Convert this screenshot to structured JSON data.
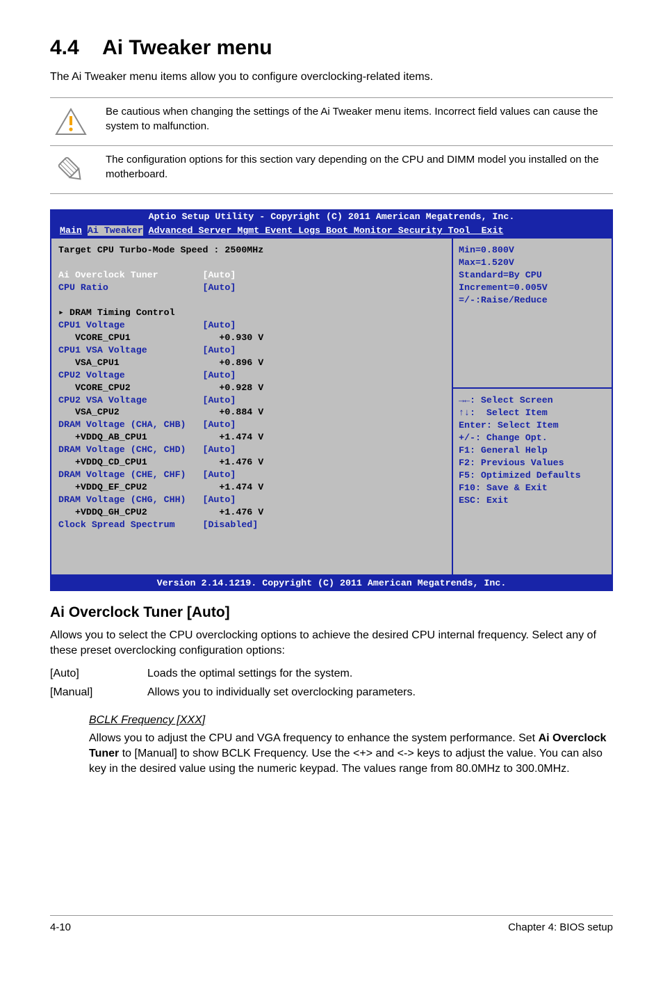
{
  "heading": {
    "number": "4.4",
    "title": "Ai Tweaker menu"
  },
  "intro": "The Ai Tweaker menu items allow you to configure overclocking-related items.",
  "notes": [
    "Be cautious when changing the settings of the Ai Tweaker menu items. Incorrect field values can cause the system to malfunction.",
    "The configuration options for this section vary depending on the CPU and DIMM model you installed on the motherboard."
  ],
  "bios": {
    "header": "Aptio Setup Utility - Copyright (C) 2011 American Megatrends, Inc.",
    "menu_left": "Main",
    "menu_active": "Ai Tweaker",
    "menu_rest": "Advanced Server Mgmt Event Logs Boot Monitor Security Tool  Exit",
    "left_lines": [
      {
        "text": "Target CPU Turbo-Mode Speed : 2500MHz",
        "cls": "black"
      },
      {
        "text": "",
        "cls": ""
      },
      {
        "text": "Ai Overclock Tuner        [Auto]",
        "cls": "white"
      },
      {
        "text": "CPU Ratio                 [Auto]",
        "cls": ""
      },
      {
        "text": "",
        "cls": ""
      },
      {
        "text": "▸ DRAM Timing Control",
        "cls": "black"
      },
      {
        "text": "CPU1 Voltage              [Auto]",
        "cls": ""
      },
      {
        "text": "   VCORE_CPU1                +0.930 V",
        "cls": "black"
      },
      {
        "text": "CPU1 VSA Voltage          [Auto]",
        "cls": ""
      },
      {
        "text": "   VSA_CPU1                  +0.896 V",
        "cls": "black"
      },
      {
        "text": "CPU2 Voltage              [Auto]",
        "cls": ""
      },
      {
        "text": "   VCORE_CPU2                +0.928 V",
        "cls": "black"
      },
      {
        "text": "CPU2 VSA Voltage          [Auto]",
        "cls": ""
      },
      {
        "text": "   VSA_CPU2                  +0.884 V",
        "cls": "black"
      },
      {
        "text": "DRAM Voltage (CHA, CHB)   [Auto]",
        "cls": ""
      },
      {
        "text": "   +VDDQ_AB_CPU1             +1.474 V",
        "cls": "black"
      },
      {
        "text": "DRAM Voltage (CHC, CHD)   [Auto]",
        "cls": ""
      },
      {
        "text": "   +VDDQ_CD_CPU1             +1.476 V",
        "cls": "black"
      },
      {
        "text": "DRAM Voltage (CHE, CHF)   [Auto]",
        "cls": ""
      },
      {
        "text": "   +VDDQ_EF_CPU2             +1.474 V",
        "cls": "black"
      },
      {
        "text": "DRAM Voltage (CHG, CHH)   [Auto]",
        "cls": ""
      },
      {
        "text": "   +VDDQ_GH_CPU2             +1.476 V",
        "cls": "black"
      },
      {
        "text": "Clock Spread Spectrum     [Disabled]",
        "cls": ""
      },
      {
        "text": "",
        "cls": ""
      },
      {
        "text": "",
        "cls": ""
      },
      {
        "text": "",
        "cls": ""
      }
    ],
    "right_top": "Min=0.800V\nMax=1.520V\nStandard=By CPU\nIncrement=0.005V\n=/-:Raise/Reduce",
    "right_bot": "→←: Select Screen\n↑↓:  Select Item\nEnter: Select Item\n+/-: Change Opt.\nF1: General Help\nF2: Previous Values\nF5: Optimized Defaults\nF10: Save & Exit\nESC: Exit",
    "footer": "Version 2.14.1219. Copyright (C) 2011 American Megatrends, Inc."
  },
  "section": {
    "title": "Ai Overclock Tuner [Auto]",
    "body": "Allows you to select the CPU overclocking options to achieve the desired CPU internal frequency. Select any of these preset overclocking configuration options:",
    "options": [
      {
        "k": "[Auto]",
        "v": "Loads the optimal settings for the system."
      },
      {
        "k": "[Manual]",
        "v": "Allows you to individually set overclocking parameters."
      }
    ],
    "sub_title": "BCLK Frequency [XXX]",
    "sub_body_1": "Allows you to adjust the CPU and VGA frequency to enhance the system performance. Set ",
    "sub_body_bold": "Ai Overclock Tuner",
    "sub_body_2": " to [Manual] to show BCLK Frequency. Use the <+> and <-> keys to adjust the value. You can also key in the desired value using the numeric keypad. The values range from 80.0MHz to 300.0MHz."
  },
  "footer": {
    "left": "4-10",
    "right": "Chapter 4: BIOS setup"
  }
}
